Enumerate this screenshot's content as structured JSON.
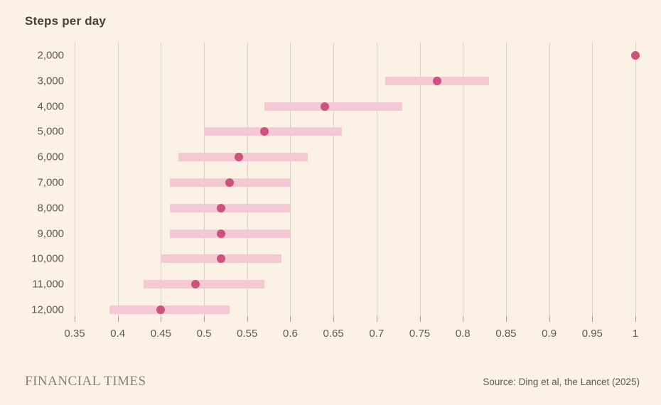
{
  "title": "Steps per day",
  "footer": {
    "brand": "FINANCIAL TIMES",
    "source": "Source: Ding et al, the Lancet (2025)"
  },
  "colors": {
    "background": "#fbf1e5",
    "bar": "#f4c8d4",
    "dot": "#d0517d",
    "gridline": "#d8cfc5",
    "tick": "#a79e94",
    "text": "#5f5952",
    "title_text": "#45413b",
    "brand_text": "#8c8377"
  },
  "chart_data": {
    "type": "scatter",
    "subtype": "dot-with-range",
    "title": "Steps per day",
    "xlabel": "",
    "ylabel": "Steps per day",
    "x_min": 0.35,
    "x_max": 1.0,
    "x_tick_values": [
      0.35,
      0.4,
      0.45,
      0.5,
      0.55,
      0.6,
      0.65,
      0.7,
      0.75,
      0.8,
      0.85,
      0.9,
      0.95,
      1
    ],
    "x_tick_labels": [
      "0.35",
      "0.4",
      "0.45",
      "0.5",
      "0.55",
      "0.6",
      "0.65",
      "0.7",
      "0.75",
      "0.8",
      "0.85",
      "0.9",
      "0.95",
      "1"
    ],
    "grid": "vertical",
    "legend": "none",
    "rows": [
      {
        "label": "2,000",
        "value": 1.0,
        "low": null,
        "high": null
      },
      {
        "label": "3,000",
        "value": 0.77,
        "low": 0.71,
        "high": 0.83
      },
      {
        "label": "4,000",
        "value": 0.64,
        "low": 0.57,
        "high": 0.73
      },
      {
        "label": "5,000",
        "value": 0.57,
        "low": 0.5,
        "high": 0.66
      },
      {
        "label": "6,000",
        "value": 0.54,
        "low": 0.47,
        "high": 0.62
      },
      {
        "label": "7,000",
        "value": 0.53,
        "low": 0.46,
        "high": 0.6
      },
      {
        "label": "8,000",
        "value": 0.52,
        "low": 0.46,
        "high": 0.6
      },
      {
        "label": "9,000",
        "value": 0.52,
        "low": 0.46,
        "high": 0.6
      },
      {
        "label": "10,000",
        "value": 0.52,
        "low": 0.45,
        "high": 0.59
      },
      {
        "label": "11,000",
        "value": 0.49,
        "low": 0.43,
        "high": 0.57
      },
      {
        "label": "12,000",
        "value": 0.45,
        "low": 0.39,
        "high": 0.53
      }
    ]
  }
}
